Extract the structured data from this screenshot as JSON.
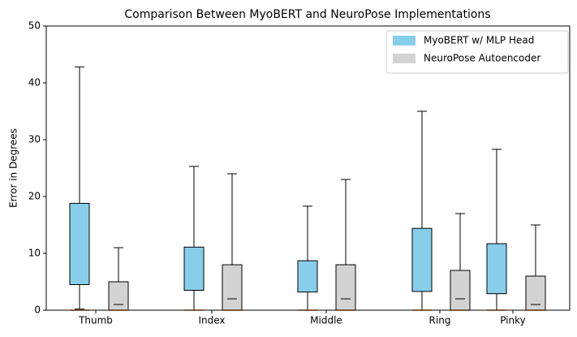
{
  "chart_data": {
    "type": "box",
    "title": "Comparison Between MyoBERT and NeuroPose Implementations",
    "y_label": "Error in Degrees",
    "categories": [
      "Thumb",
      "Index",
      "Middle",
      "Ring",
      "Pinky"
    ],
    "ylim": [
      0,
      50
    ],
    "yticks": [
      0,
      10,
      20,
      30,
      40,
      50
    ],
    "legend": "upper right",
    "median_color": "#ff7f0e",
    "series": [
      {
        "name": "MyoBERT w/ MLP Head",
        "color": "#87ceeb",
        "low": [
          0.2,
          0,
          0,
          0,
          0
        ],
        "q1": [
          4.5,
          3.5,
          3.2,
          3.3,
          2.9
        ],
        "median": [
          0,
          0,
          0,
          0,
          0
        ],
        "q3": [
          18.8,
          11.1,
          8.7,
          14.4,
          11.7
        ],
        "high": [
          42.8,
          25.3,
          18.3,
          35,
          28.3
        ]
      },
      {
        "name": "NeuroPose Autoencoder",
        "color": "#d3d3d3",
        "low": [
          1,
          2,
          2,
          2,
          1
        ],
        "q1": [
          0,
          0,
          0,
          0,
          0
        ],
        "median": [
          0,
          0,
          0,
          0,
          0
        ],
        "q3": [
          5,
          8,
          8,
          7,
          6
        ],
        "high": [
          11,
          24,
          23,
          17,
          15
        ]
      }
    ]
  }
}
